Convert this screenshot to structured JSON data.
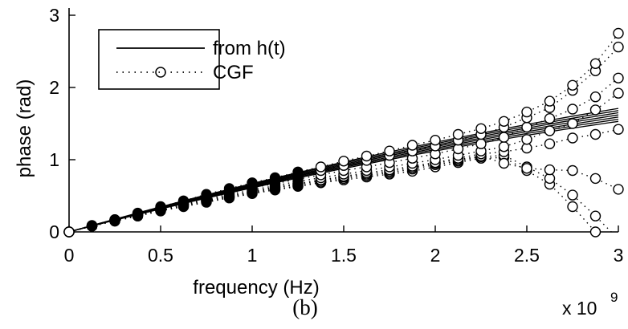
{
  "chart_data": {
    "type": "line",
    "caption": "(b)",
    "xlabel": "frequency (Hz)",
    "ylabel": "phase (rad)",
    "x_multiplier_label": "x 10",
    "x_multiplier_exponent": "9",
    "xlim": [
      0,
      3
    ],
    "ylim": [
      0,
      3.1
    ],
    "xticks": [
      "0",
      "0.5",
      "1",
      "1.5",
      "2",
      "2.5",
      "3"
    ],
    "yticks": [
      "0",
      "1",
      "2",
      "3"
    ],
    "grid": false,
    "legend": {
      "placement": "top-left",
      "entries": [
        {
          "label": "from h(t)",
          "style": "solid line"
        },
        {
          "label": "CGF",
          "style": "dotted line with circle markers"
        }
      ]
    },
    "series_from_h": {
      "x": [
        0,
        3
      ],
      "curves": [
        {
          "slope0": 0.66,
          "end": 1.53
        },
        {
          "slope0": 0.67,
          "end": 1.56
        },
        {
          "slope0": 0.68,
          "end": 1.59
        },
        {
          "slope0": 0.69,
          "end": 1.62
        },
        {
          "slope0": 0.7,
          "end": 1.65
        },
        {
          "slope0": 0.71,
          "end": 1.68
        },
        {
          "slope0": 0.72,
          "end": 1.71
        }
      ]
    },
    "series_cgf": {
      "x": [
        0,
        0.125,
        0.25,
        0.375,
        0.5,
        0.625,
        0.75,
        0.875,
        1.0,
        1.125,
        1.25,
        1.375,
        1.5,
        1.625,
        1.75,
        1.875,
        2.0,
        2.125,
        2.25,
        2.375,
        2.5,
        2.625,
        2.75,
        2.875,
        3.0
      ],
      "groups": [
        [
          0,
          0.08,
          0.15,
          0.22,
          0.29,
          0.35,
          0.41,
          0.47,
          0.53,
          0.58,
          0.63,
          0.68,
          0.72,
          0.76,
          0.8,
          0.84,
          0.9,
          0.96,
          1.02,
          1.03,
          0.85,
          0.66,
          0.35,
          0.0,
          -0.2
        ],
        [
          0,
          0.08,
          0.15,
          0.22,
          0.29,
          0.36,
          0.42,
          0.48,
          0.54,
          0.59,
          0.64,
          0.69,
          0.74,
          0.78,
          0.82,
          0.87,
          0.93,
          0.98,
          1.04,
          1.06,
          0.9,
          0.74,
          0.51,
          0.22,
          -0.1
        ],
        [
          0,
          0.08,
          0.16,
          0.23,
          0.3,
          0.37,
          0.43,
          0.49,
          0.55,
          0.61,
          0.66,
          0.71,
          0.76,
          0.8,
          0.84,
          0.89,
          0.95,
          1.0,
          1.05,
          0.95,
          0.88,
          0.86,
          0.85,
          0.74,
          0.59
        ],
        [
          0,
          0.08,
          0.16,
          0.23,
          0.31,
          0.38,
          0.44,
          0.5,
          0.56,
          0.62,
          0.67,
          0.72,
          0.77,
          0.82,
          0.86,
          0.91,
          0.96,
          1.02,
          1.08,
          1.11,
          1.16,
          1.22,
          1.3,
          1.35,
          1.42
        ],
        [
          0,
          0.08,
          0.16,
          0.24,
          0.31,
          0.38,
          0.45,
          0.52,
          0.58,
          0.64,
          0.7,
          0.75,
          0.8,
          0.85,
          0.9,
          0.95,
          1.0,
          1.06,
          1.12,
          1.18,
          1.28,
          1.4,
          1.5,
          1.69,
          1.92
        ],
        [
          0,
          0.08,
          0.16,
          0.24,
          0.32,
          0.4,
          0.47,
          0.54,
          0.61,
          0.67,
          0.73,
          0.79,
          0.85,
          0.9,
          0.96,
          1.02,
          1.08,
          1.15,
          1.22,
          1.31,
          1.45,
          1.57,
          1.7,
          1.87,
          2.13
        ],
        [
          0,
          0.08,
          0.17,
          0.25,
          0.33,
          0.41,
          0.49,
          0.57,
          0.64,
          0.71,
          0.78,
          0.85,
          0.92,
          0.99,
          1.06,
          1.12,
          1.19,
          1.27,
          1.35,
          1.45,
          1.58,
          1.72,
          1.96,
          2.23,
          2.56
        ],
        [
          0,
          0.09,
          0.17,
          0.26,
          0.35,
          0.43,
          0.52,
          0.6,
          0.68,
          0.75,
          0.83,
          0.9,
          0.98,
          1.05,
          1.12,
          1.2,
          1.27,
          1.35,
          1.43,
          1.53,
          1.66,
          1.81,
          2.03,
          2.33,
          2.75
        ]
      ]
    }
  }
}
